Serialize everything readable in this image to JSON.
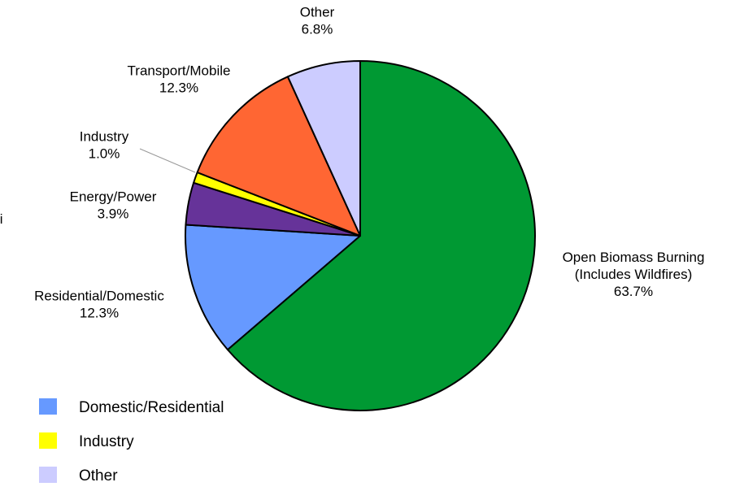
{
  "chart_data": {
    "type": "pie",
    "slices": [
      {
        "key": "open-biomass-burning",
        "label_lines": [
          "Open Biomass Burning",
          "(Includes Wildfires)"
        ],
        "value_text": "63.7%",
        "value": 63.7,
        "color": "#009933"
      },
      {
        "key": "residential-domestic",
        "label_lines": [
          "Residential/Domestic"
        ],
        "value_text": "12.3%",
        "value": 12.3,
        "color": "#6699ff"
      },
      {
        "key": "energy-power",
        "label_lines": [
          "Energy/Power"
        ],
        "value_text": "3.9%",
        "value": 3.9,
        "color": "#663399"
      },
      {
        "key": "industry",
        "label_lines": [
          "Industry"
        ],
        "value_text": "1.0%",
        "value": 1.0,
        "color": "#ffff00"
      },
      {
        "key": "transport-mobile",
        "label_lines": [
          "Transport/Mobile"
        ],
        "value_text": "12.3%",
        "value": 12.3,
        "color": "#ff6633"
      },
      {
        "key": "other",
        "label_lines": [
          "Other"
        ],
        "value_text": "6.8%",
        "value": 6.8,
        "color": "#ccccff"
      }
    ],
    "start_position": "top",
    "direction": "clockwise",
    "legend": {
      "placement": "bottom-left",
      "items": [
        {
          "label": "Domestic/Residential",
          "color": "#6699ff"
        },
        {
          "label": "Industry",
          "color": "#ffff00"
        },
        {
          "label": "Other",
          "color": "#ccccff"
        }
      ]
    },
    "cropped_text_fragment": "ti"
  }
}
